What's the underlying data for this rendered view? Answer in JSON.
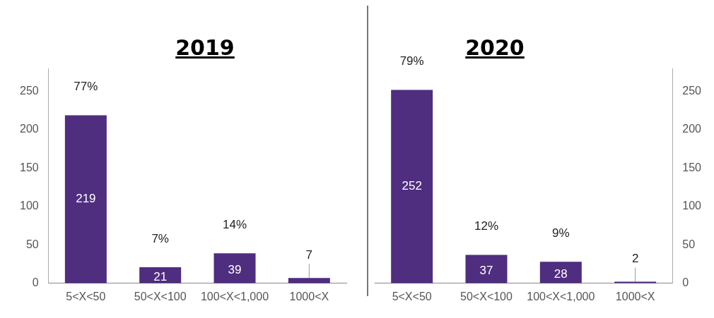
{
  "chart_data": [
    {
      "type": "bar",
      "title": "2019",
      "categories": [
        "5<X<50",
        "50<X<100",
        "100<X<1,000",
        "1000<X"
      ],
      "series": [
        {
          "color": "#4f2d7f",
          "values": [
            219,
            21,
            39,
            7
          ],
          "value_labels": [
            "219",
            "21",
            "39",
            "7"
          ]
        }
      ],
      "ylim": [
        0,
        280
      ],
      "yticks": [
        0,
        50,
        100,
        150,
        200,
        250
      ],
      "grid": false,
      "legend": false,
      "annotations": [
        "77%",
        "7%",
        "14%"
      ]
    },
    {
      "type": "bar",
      "title": "2020",
      "categories": [
        "5<X<50",
        "50<X<100",
        "100<X<1,000",
        "1000<X"
      ],
      "series": [
        {
          "color": "#4f2d7f",
          "values": [
            252,
            37,
            28,
            2
          ],
          "value_labels": [
            "252",
            "37",
            "28",
            "2"
          ],
          "axis": "y2"
        }
      ],
      "y2lim": [
        0,
        280
      ],
      "y2ticks": [
        0,
        50,
        100,
        150,
        200,
        250
      ],
      "grid": false,
      "legend": false,
      "annotations": [
        "79%",
        "12%",
        "9%"
      ]
    }
  ]
}
